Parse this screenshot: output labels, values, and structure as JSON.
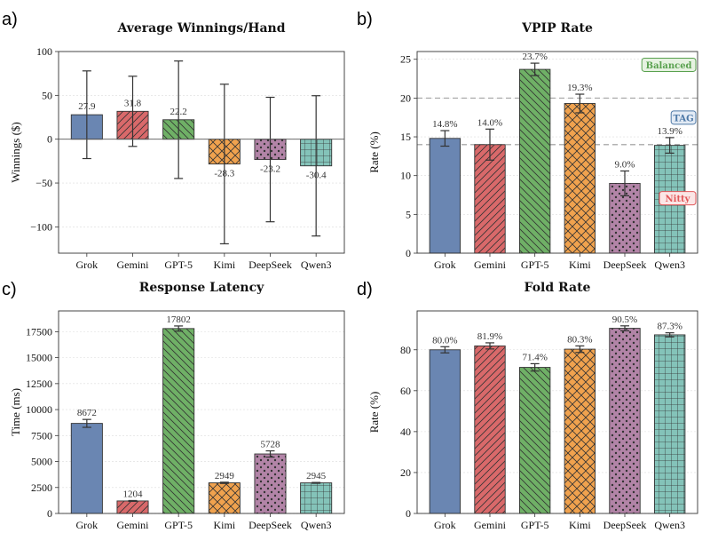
{
  "chart_data": [
    {
      "panel": "a)",
      "type": "bar",
      "title": "Average Winnings/Hand",
      "xlabel": "",
      "ylabel": "Winnings ($)",
      "categories": [
        "Grok",
        "Gemini",
        "GPT-5",
        "Kimi",
        "DeepSeek",
        "Qwen3"
      ],
      "values": [
        27.9,
        31.8,
        22.2,
        -28.3,
        -23.2,
        -30.4
      ],
      "value_labels": [
        "27.9",
        "31.8",
        "22.2",
        "-28.3",
        "-23.2",
        "-30.4"
      ],
      "error": [
        50,
        40,
        67,
        91,
        71,
        80
      ],
      "ylim": [
        -130,
        100
      ],
      "yticks": [
        -100,
        -50,
        0,
        50,
        100
      ],
      "ytick_labels": [
        "−100",
        "−50",
        "0",
        "50",
        "100"
      ],
      "grid": true,
      "label_pos": "above_positive_below_negative",
      "annotations": []
    },
    {
      "panel": "b)",
      "type": "bar",
      "title": "VPIP Rate",
      "xlabel": "",
      "ylabel": "Rate (%)",
      "categories": [
        "Grok",
        "Gemini",
        "GPT-5",
        "Kimi",
        "DeepSeek",
        "Qwen3"
      ],
      "values": [
        14.8,
        14.0,
        23.7,
        19.3,
        9.0,
        13.9
      ],
      "value_labels": [
        "14.8%",
        "14.0%",
        "23.7%",
        "19.3%",
        "9.0%",
        "13.9%"
      ],
      "error": [
        1.0,
        2.0,
        0.8,
        1.2,
        1.6,
        1.0
      ],
      "ylim": [
        0,
        26
      ],
      "yticks": [
        0,
        5,
        10,
        15,
        20,
        25
      ],
      "ytick_labels": [
        "0",
        "5",
        "10",
        "15",
        "20",
        "25"
      ],
      "grid": true,
      "label_pos": "above_bar",
      "hlines": [
        20,
        14
      ],
      "annotations": [
        {
          "text": "Balanced",
          "y": 24.0,
          "color": "#59a14f",
          "fill": "#e6f2e1"
        },
        {
          "text": "TAG",
          "y": 17.2,
          "color": "#4e79a7",
          "fill": "#e3ebf5"
        },
        {
          "text": "Nitty",
          "y": 6.8,
          "color": "#e15759",
          "fill": "#fbe6e6"
        }
      ]
    },
    {
      "panel": "c)",
      "type": "bar",
      "title": "Response Latency",
      "xlabel": "",
      "ylabel": "Time (ms)",
      "categories": [
        "Grok",
        "Gemini",
        "GPT-5",
        "Kimi",
        "DeepSeek",
        "Qwen3"
      ],
      "values": [
        8672,
        1204,
        17802,
        2949,
        5728,
        2945
      ],
      "value_labels": [
        "8672",
        "1204",
        "17802",
        "2949",
        "5728",
        "2945"
      ],
      "error": [
        380,
        40,
        250,
        60,
        300,
        40
      ],
      "ylim": [
        0,
        19500
      ],
      "yticks": [
        0,
        2500,
        5000,
        7500,
        10000,
        12500,
        15000,
        17500
      ],
      "ytick_labels": [
        "0",
        "2500",
        "5000",
        "7500",
        "10000",
        "12500",
        "15000",
        "17500"
      ],
      "grid": true,
      "label_pos": "above_bar",
      "annotations": []
    },
    {
      "panel": "d)",
      "type": "bar",
      "title": "Fold Rate",
      "xlabel": "",
      "ylabel": "Rate (%)",
      "categories": [
        "Grok",
        "Gemini",
        "GPT-5",
        "Kimi",
        "DeepSeek",
        "Qwen3"
      ],
      "values": [
        80.0,
        81.9,
        71.4,
        80.3,
        90.5,
        87.3
      ],
      "value_labels": [
        "80.0%",
        "81.9%",
        "71.4%",
        "80.3%",
        "90.5%",
        "87.3%"
      ],
      "error": [
        1.5,
        1.5,
        1.8,
        1.6,
        1.2,
        1.0
      ],
      "ylim": [
        0,
        99
      ],
      "yticks": [
        0,
        20,
        40,
        60,
        80
      ],
      "ytick_labels": [
        "0",
        "20",
        "40",
        "60",
        "80"
      ],
      "grid": true,
      "label_pos": "above_bar",
      "annotations": []
    }
  ],
  "colors": [
    "#6a86b2",
    "#d9696a",
    "#6fb066",
    "#f0a24e",
    "#b284a7",
    "#84c3b9"
  ],
  "hatches": [
    "none",
    "diagonal",
    "back-diagonal",
    "crosshatch",
    "dots",
    "grid"
  ]
}
